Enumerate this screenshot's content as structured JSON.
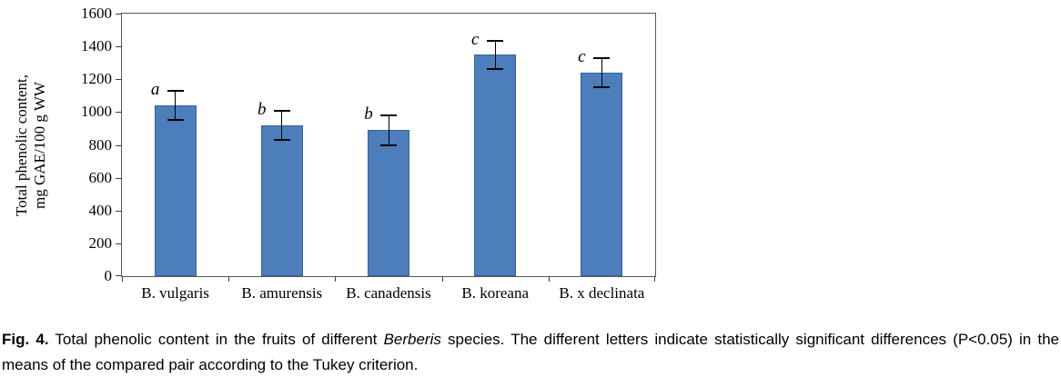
{
  "chart_data": {
    "type": "bar",
    "title": "",
    "categories": [
      "B. vulgaris",
      "B. amurensis",
      "B. canadensis",
      "B. koreana",
      "B. x declinata"
    ],
    "values": [
      1040,
      920,
      890,
      1350,
      1240
    ],
    "errors": [
      90,
      90,
      90,
      85,
      90
    ],
    "significance_letters": [
      "a",
      "b",
      "b",
      "c",
      "c"
    ],
    "ylabel_line1": "Total phenolic  content,",
    "ylabel_line2": "mg GAE/100 g WW",
    "xlabel": "",
    "ylim": [
      0,
      1600
    ],
    "yticks": [
      0,
      200,
      400,
      600,
      800,
      1000,
      1200,
      1400,
      1600
    ],
    "bar_color": "#4C7EBB",
    "grid": false,
    "legend": "none"
  },
  "caption": {
    "fig_label": "Fig. 4.",
    "text_before_italic": "Total phenolic content in the fruits of different ",
    "italic_word": "Berberis",
    "text_after_italic": " species. The different letters indicate statistically significant differences (P<0.05) in the means of the compared pair according to the Tukey criterion."
  }
}
